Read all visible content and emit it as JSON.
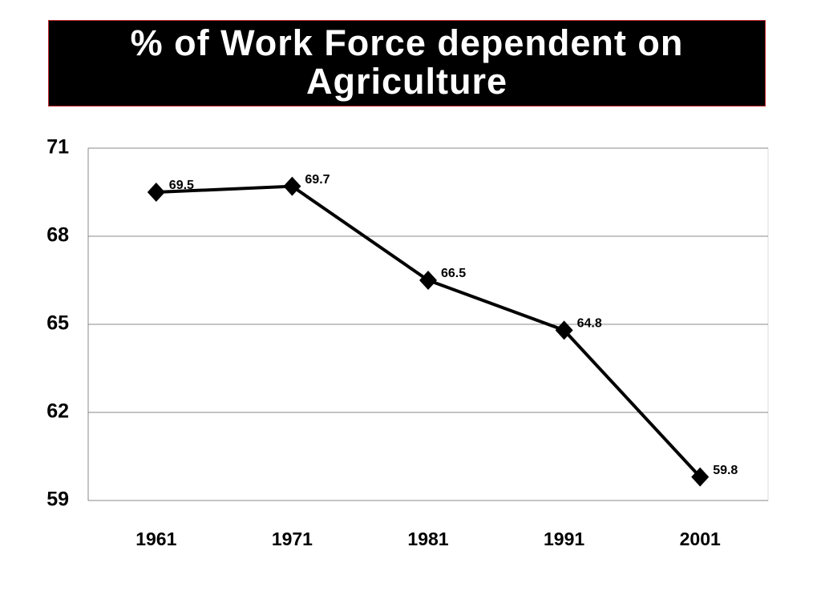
{
  "chart_data": {
    "type": "line",
    "title": "% of Work Force dependent on Agriculture",
    "categories": [
      "1961",
      "1971",
      "1981",
      "1991",
      "2001"
    ],
    "values": [
      69.5,
      69.7,
      66.5,
      64.8,
      59.8
    ],
    "color": "#000000",
    "ylim": [
      59,
      71
    ],
    "yticks": [
      59,
      62,
      65,
      68,
      71
    ],
    "grid": true
  }
}
